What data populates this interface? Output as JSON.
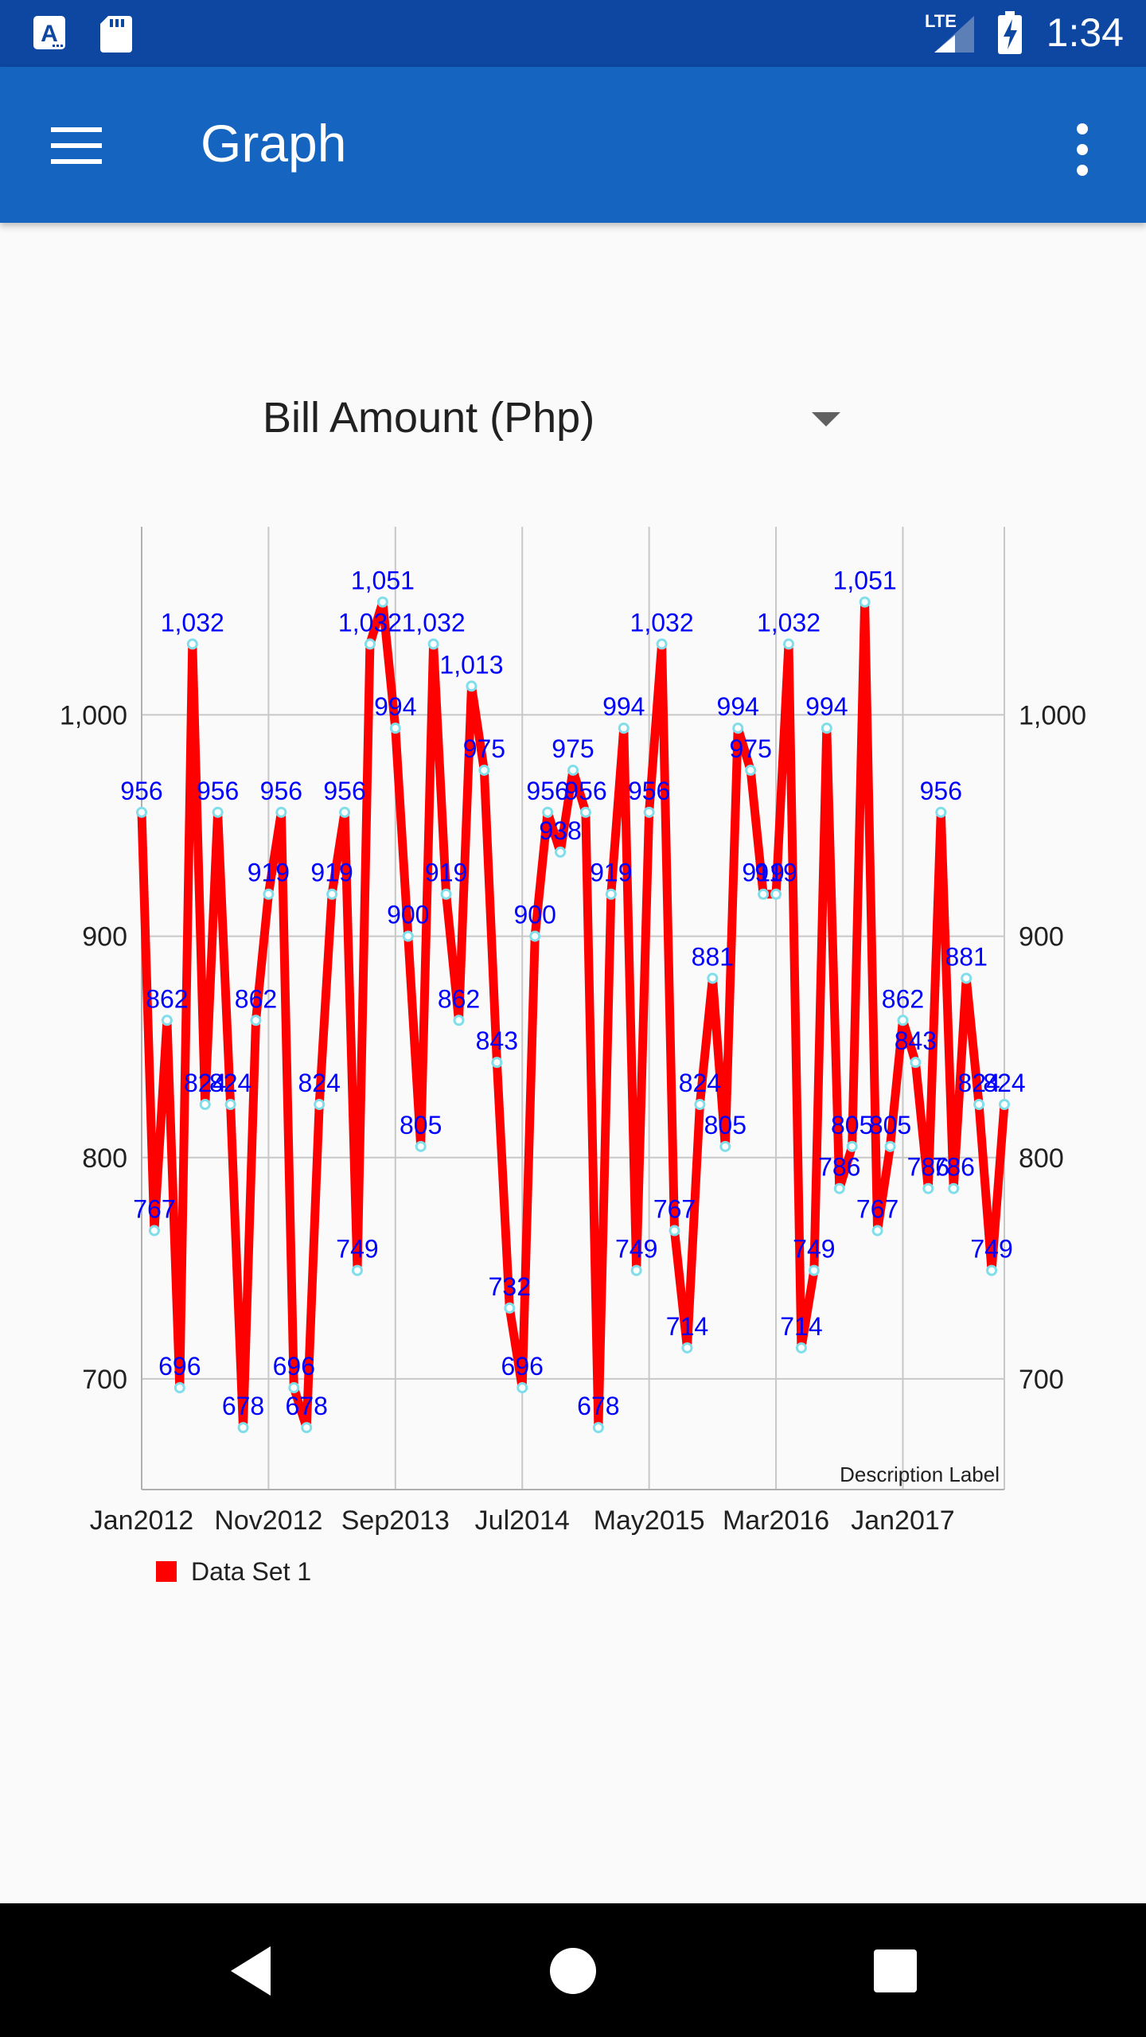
{
  "status_bar": {
    "time": "1:34",
    "network": "LTE",
    "icons": [
      "a-notification-icon",
      "sd-card-icon",
      "signal-icon",
      "battery-charging-icon"
    ]
  },
  "app_bar": {
    "title": "Graph",
    "menu_icon": "hamburger-menu-icon",
    "overflow_icon": "more-vert-icon"
  },
  "spinner": {
    "selected": "Bill Amount (Php)",
    "icon": "dropdown-arrow-icon"
  },
  "chart_data": {
    "type": "line",
    "x_tick_labels": [
      "Jan2012",
      "Nov2012",
      "Sep2013",
      "Jul2014",
      "May2015",
      "Mar2016",
      "Jan2017"
    ],
    "y_ticks": [
      700,
      800,
      900,
      1000
    ],
    "y_tick_labels": [
      "700",
      "800",
      "900",
      "1,000"
    ],
    "ylim": [
      650,
      1085
    ],
    "grid": true,
    "description": "Description Label",
    "legend_position": "bottom-left",
    "series": [
      {
        "name": "Data Set 1",
        "color": "#ff0000",
        "point_color": "#80deea",
        "value_label_color": "#0000ff",
        "values": [
          956,
          767,
          862,
          696,
          1032,
          824,
          956,
          824,
          678,
          862,
          919,
          956,
          696,
          678,
          824,
          919,
          956,
          749,
          1032,
          1051,
          994,
          900,
          805,
          1032,
          919,
          862,
          1013,
          975,
          843,
          732,
          696,
          900,
          956,
          938,
          975,
          956,
          678,
          919,
          994,
          749,
          956,
          1032,
          767,
          714,
          824,
          881,
          805,
          994,
          975,
          919,
          919,
          1032,
          714,
          749,
          994,
          786,
          805,
          1051,
          767,
          805,
          862,
          843,
          786,
          956,
          786,
          881,
          824,
          749,
          824
        ],
        "value_labels": [
          "956",
          "767",
          "862",
          "696",
          "1,032",
          "824",
          "956",
          "824",
          "678",
          "862",
          "919",
          "956",
          "696",
          "678",
          "824",
          "919",
          "956",
          "749",
          "1,032",
          "1,051",
          "994",
          "900",
          "805",
          "1,032",
          "919",
          "862",
          "1,013",
          "975",
          "843",
          "732",
          "696",
          "900",
          "956",
          "938",
          "975",
          "956",
          "678",
          "919",
          "994",
          "749",
          "956",
          "1,032",
          "767",
          "714",
          "824",
          "881",
          "805",
          "994",
          "975",
          "919",
          "919",
          "1,032",
          "714",
          "749",
          "994",
          "786",
          "805",
          "1,051",
          "767",
          "805",
          "862",
          "843",
          "786",
          "956",
          "786",
          "881",
          "824",
          "749",
          "824"
        ]
      }
    ]
  },
  "nav_bar": {
    "icons": [
      "back-icon",
      "home-icon",
      "recents-icon"
    ]
  }
}
